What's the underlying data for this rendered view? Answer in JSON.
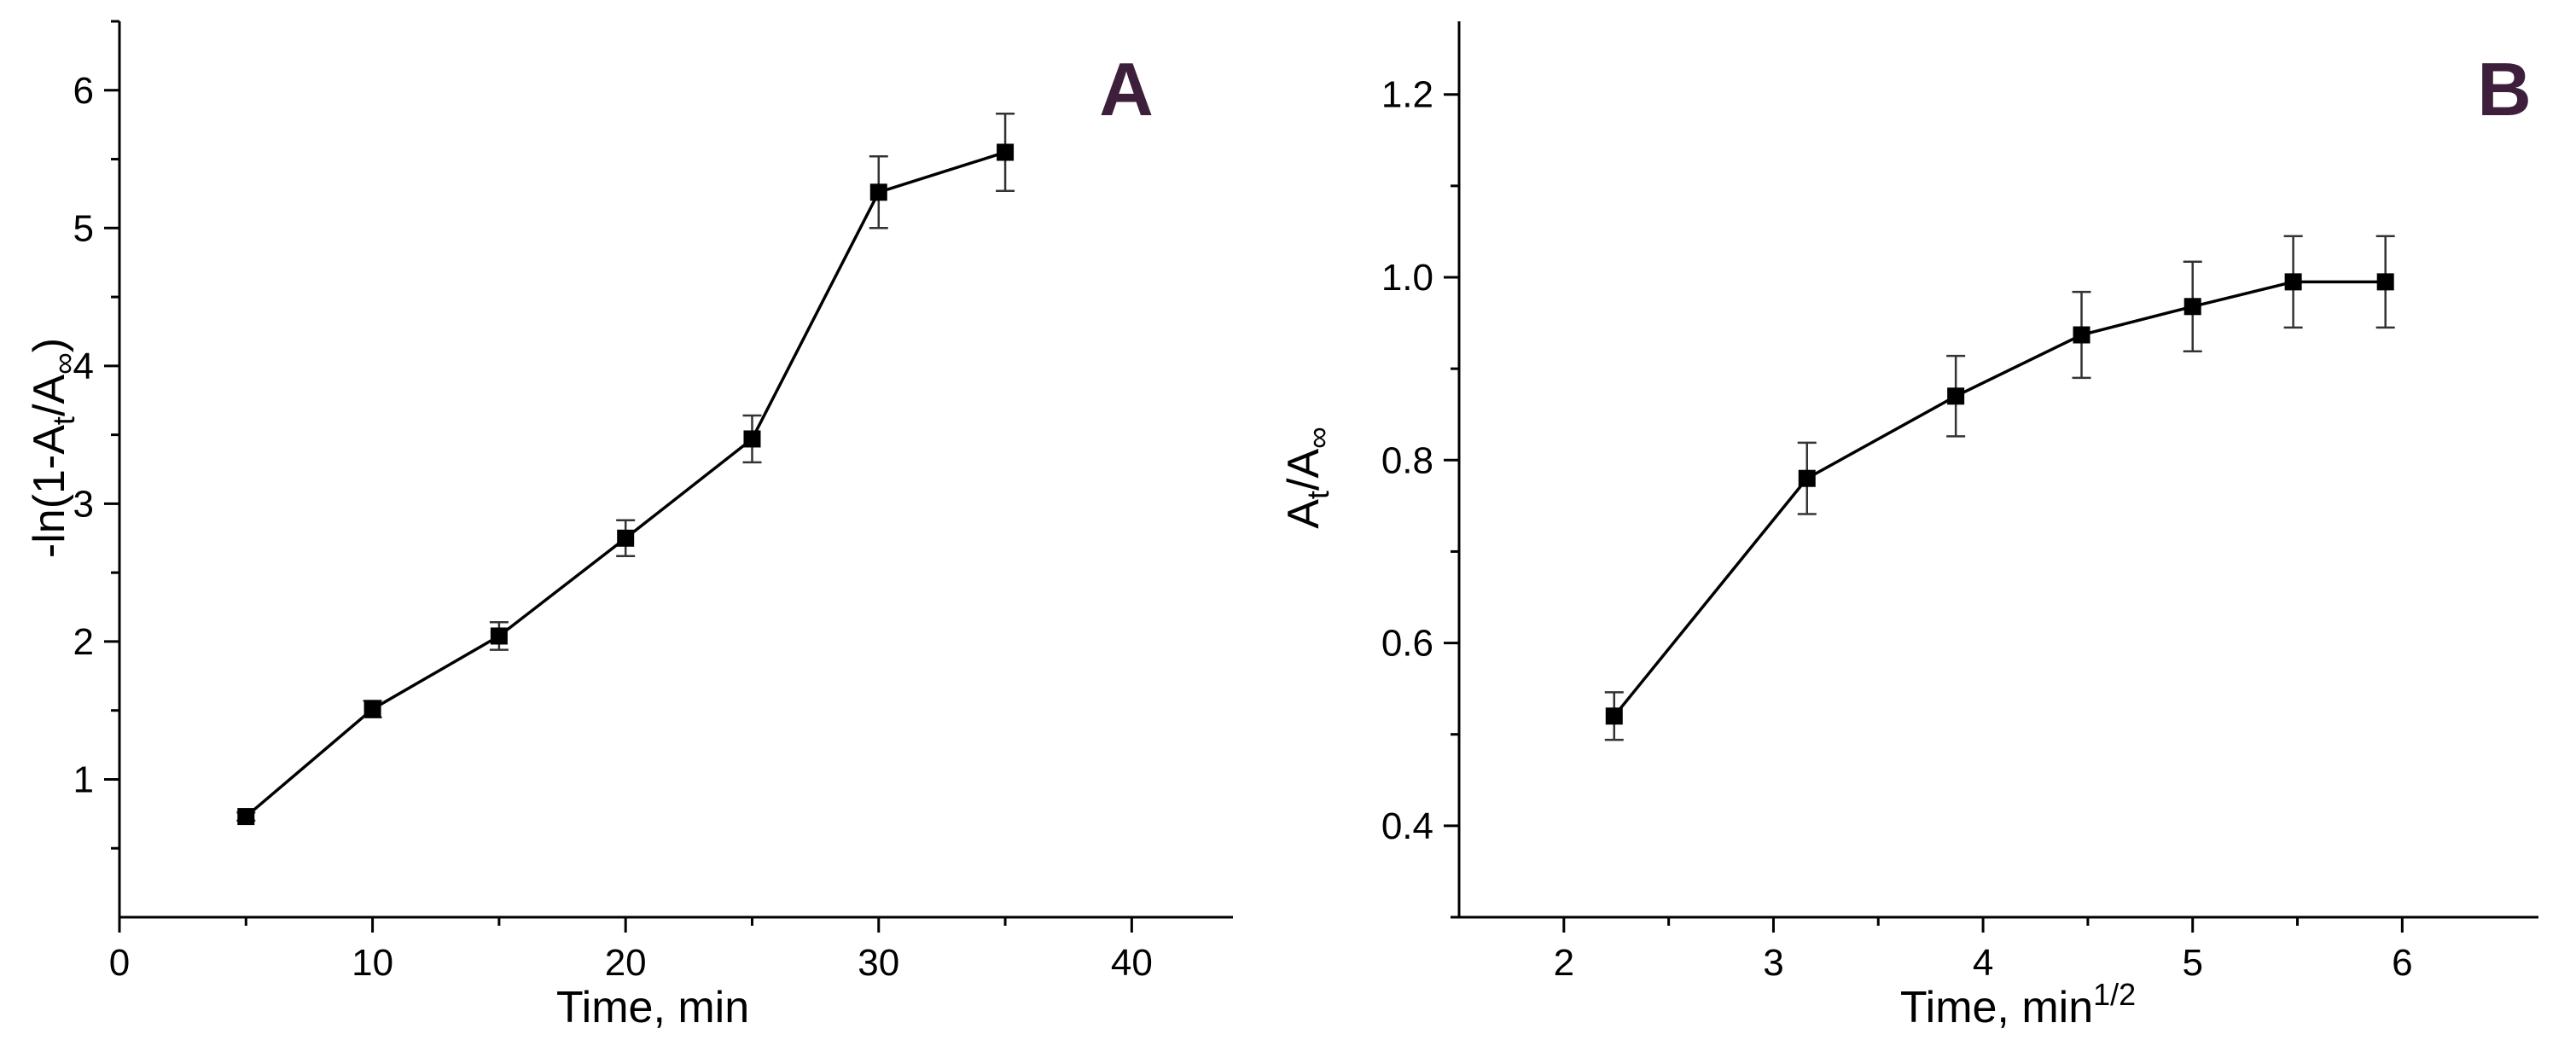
{
  "colors": {
    "panel_letter": "#3d1f3b",
    "series": "#000000"
  },
  "chart_data": [
    {
      "id": "A",
      "type": "line",
      "panel_label": "A",
      "title": "",
      "xlabel": "Time, min",
      "ylabel": "-ln(1-A",
      "ylabel_sub": "t",
      "ylabel_mid": "/A",
      "ylabel_sub2": "∞",
      "ylabel_end": ")",
      "xlim": [
        0,
        44
      ],
      "ylim": [
        0,
        6.5
      ],
      "xticks": [
        0,
        10,
        20,
        30,
        40
      ],
      "xtick_labels": [
        "0",
        "10",
        "20",
        "30",
        "40"
      ],
      "yticks": [
        1,
        2,
        3,
        4,
        5,
        6
      ],
      "ytick_labels": [
        "1",
        "2",
        "3",
        "4",
        "5",
        "6"
      ],
      "grid": false,
      "marker": "square",
      "series": [
        {
          "x": [
            5,
            10,
            15,
            20,
            25,
            30,
            35
          ],
          "y": [
            0.73,
            1.51,
            2.04,
            2.75,
            3.47,
            5.26,
            5.55
          ],
          "yerr": [
            0.03,
            0.06,
            0.1,
            0.13,
            0.17,
            0.26,
            0.28
          ]
        }
      ]
    },
    {
      "id": "B",
      "type": "line",
      "panel_label": "B",
      "title": "",
      "xlabel": "Time, min",
      "xlabel_sup": "1/2",
      "ylabel": "A",
      "ylabel_sub": "t",
      "ylabel_mid": "/A",
      "ylabel_sub2": "∞",
      "ylabel_end": "",
      "xlim": [
        1.5,
        6.65
      ],
      "ylim": [
        0.3,
        1.28
      ],
      "xticks": [
        2,
        3,
        4,
        5,
        6
      ],
      "xtick_labels": [
        "2",
        "3",
        "4",
        "5",
        "6"
      ],
      "yticks": [
        0.4,
        0.6,
        0.8,
        1.0,
        1.2
      ],
      "ytick_labels": [
        "0.4",
        "0.6",
        "0.8",
        "1.0",
        "1.2"
      ],
      "grid": false,
      "marker": "square",
      "series": [
        {
          "x": [
            2.24,
            3.16,
            3.87,
            4.47,
            5.0,
            5.48,
            5.92
          ],
          "y": [
            0.52,
            0.78,
            0.87,
            0.937,
            0.968,
            0.995,
            0.995
          ],
          "yerr": [
            0.026,
            0.039,
            0.044,
            0.047,
            0.049,
            0.05,
            0.05
          ]
        }
      ]
    }
  ]
}
